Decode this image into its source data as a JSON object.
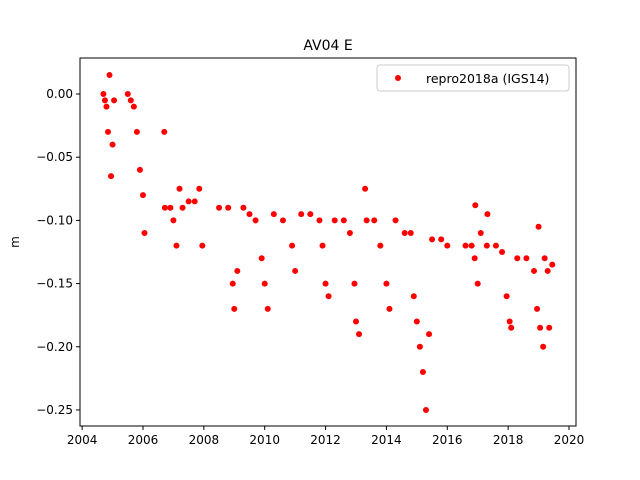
{
  "chart_data": {
    "type": "scatter",
    "title": "AV04 E",
    "xlabel": "",
    "ylabel": "m",
    "xlim": [
      2003.93,
      2020.23
    ],
    "ylim": [
      -0.2627,
      0.0285
    ],
    "xticks": [
      2004,
      2006,
      2008,
      2010,
      2012,
      2014,
      2016,
      2018,
      2020
    ],
    "xtick_labels": [
      "2004",
      "2006",
      "2008",
      "2010",
      "2012",
      "2014",
      "2016",
      "2018",
      "2020"
    ],
    "yticks": [
      0.0,
      -0.05,
      -0.1,
      -0.15,
      -0.2,
      -0.25
    ],
    "ytick_labels": [
      "0.00",
      "−0.05",
      "−0.10",
      "−0.15",
      "−0.20",
      "−0.25"
    ],
    "grid": false,
    "legend_position": "top-right",
    "series": [
      {
        "name": "repro2018a (IGS14)",
        "color": "#ff0000",
        "x": [
          2004.7,
          2004.75,
          2004.8,
          2004.85,
          2004.9,
          2004.95,
          2005.0,
          2005.05,
          2005.5,
          2005.6,
          2005.7,
          2005.8,
          2005.9,
          2006.0,
          2006.05,
          2006.7,
          2006.72,
          2006.9,
          2007.0,
          2007.1,
          2007.2,
          2007.3,
          2007.5,
          2007.7,
          2007.85,
          2007.95,
          2008.5,
          2008.8,
          2008.95,
          2009.0,
          2009.1,
          2009.3,
          2009.5,
          2009.7,
          2009.9,
          2010.0,
          2010.1,
          2010.3,
          2010.6,
          2010.9,
          2011.0,
          2011.2,
          2011.5,
          2011.8,
          2011.9,
          2012.0,
          2012.1,
          2012.3,
          2012.6,
          2012.8,
          2012.95,
          2013.0,
          2013.1,
          2013.3,
          2013.35,
          2013.6,
          2013.8,
          2014.0,
          2014.1,
          2014.3,
          2014.6,
          2014.8,
          2014.9,
          2015.0,
          2015.1,
          2015.2,
          2015.3,
          2015.4,
          2015.5,
          2015.8,
          2016.0,
          2016.6,
          2016.8,
          2016.9,
          2016.92,
          2017.0,
          2017.1,
          2017.3,
          2017.32,
          2017.6,
          2017.8,
          2017.95,
          2018.05,
          2018.1,
          2018.3,
          2018.6,
          2018.85,
          2018.95,
          2019.0,
          2019.05,
          2019.15,
          2019.2,
          2019.3,
          2019.35,
          2019.45
        ],
        "y": [
          0.0,
          -0.005,
          -0.01,
          -0.03,
          0.015,
          -0.065,
          -0.04,
          -0.005,
          0.0,
          -0.005,
          -0.01,
          -0.03,
          -0.06,
          -0.08,
          -0.11,
          -0.03,
          -0.09,
          -0.09,
          -0.1,
          -0.12,
          -0.075,
          -0.09,
          -0.085,
          -0.085,
          -0.075,
          -0.12,
          -0.09,
          -0.09,
          -0.15,
          -0.17,
          -0.14,
          -0.09,
          -0.095,
          -0.1,
          -0.13,
          -0.15,
          -0.17,
          -0.095,
          -0.1,
          -0.12,
          -0.14,
          -0.095,
          -0.095,
          -0.1,
          -0.12,
          -0.15,
          -0.16,
          -0.1,
          -0.1,
          -0.11,
          -0.15,
          -0.18,
          -0.19,
          -0.075,
          -0.1,
          -0.1,
          -0.12,
          -0.15,
          -0.17,
          -0.1,
          -0.11,
          -0.11,
          -0.16,
          -0.18,
          -0.2,
          -0.22,
          -0.25,
          -0.19,
          -0.115,
          -0.115,
          -0.12,
          -0.12,
          -0.12,
          -0.13,
          -0.088,
          -0.15,
          -0.11,
          -0.12,
          -0.095,
          -0.12,
          -0.125,
          -0.16,
          -0.18,
          -0.185,
          -0.13,
          -0.13,
          -0.14,
          -0.17,
          -0.105,
          -0.185,
          -0.2,
          -0.13,
          -0.14,
          -0.185,
          -0.135
        ]
      }
    ]
  }
}
